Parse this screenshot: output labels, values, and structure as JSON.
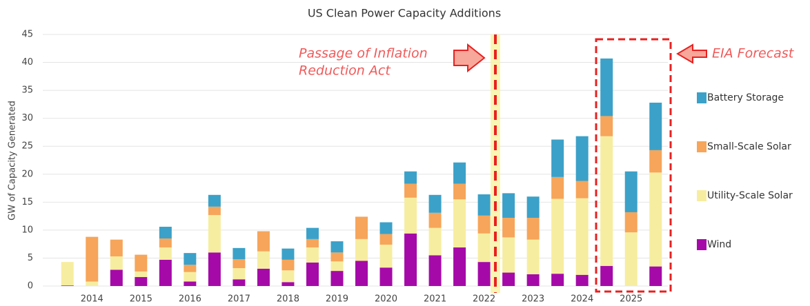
{
  "chart_data": {
    "type": "bar",
    "stacked": true,
    "title": "US Clean Power Capacity Additions",
    "y_label": "GW of Capacity Generated",
    "annotations": [
      "Passage of Inflation",
      "Reduction Act",
      "EIA Forecast"
    ],
    "categories": [
      null,
      "2014",
      null,
      "2015",
      null,
      "2016",
      null,
      "2017",
      null,
      "2018",
      null,
      "2019",
      null,
      "2020",
      null,
      "2021",
      null,
      "2022",
      null,
      "2023",
      null,
      "2024",
      null,
      "2025",
      null
    ],
    "series": [
      {
        "name": "Wind",
        "color": "#a50aa8",
        "values": [
          0.1,
          0,
          2.9,
          1.6,
          4.7,
          0.8,
          6.0,
          1.2,
          3.1,
          0.7,
          4.2,
          2.7,
          4.5,
          3.3,
          9.4,
          5.5,
          6.9,
          4.3,
          2.4,
          2.1,
          2.2,
          2.0,
          3.6,
          0,
          3.5
        ]
      },
      {
        "name": "Utility-Scale Solar",
        "color": "#f7eda0",
        "values": [
          4.2,
          0.8,
          2.4,
          1.0,
          2.2,
          1.7,
          6.7,
          2.0,
          3.1,
          2.1,
          2.7,
          1.7,
          3.9,
          4.1,
          6.4,
          4.9,
          8.6,
          5.1,
          6.3,
          6.2,
          13.4,
          13.7,
          23.2,
          9.6,
          16.8
        ]
      },
      {
        "name": "Small-Scale Solar",
        "color": "#f6a55a",
        "values": [
          0,
          8.0,
          3.0,
          3.0,
          1.6,
          1.3,
          1.5,
          1.6,
          3.6,
          1.9,
          1.5,
          1.6,
          4.0,
          1.9,
          2.5,
          2.7,
          2.8,
          3.2,
          3.5,
          3.9,
          3.9,
          3.1,
          3.6,
          3.6,
          4.0
        ]
      },
      {
        "name": "Battery Storage",
        "color": "#3ba1c8",
        "values": [
          0,
          0,
          0,
          0,
          2.1,
          2.1,
          2.1,
          2.0,
          0,
          2.0,
          2.0,
          2.0,
          0,
          2.1,
          2.2,
          3.2,
          3.8,
          3.8,
          4.4,
          3.8,
          6.7,
          8.0,
          10.3,
          7.3,
          8.5
        ]
      }
    ],
    "ylim": [
      0,
      45
    ],
    "yticks": [
      0,
      5,
      10,
      15,
      20,
      25,
      30,
      35,
      40,
      45
    ],
    "grid": true
  }
}
